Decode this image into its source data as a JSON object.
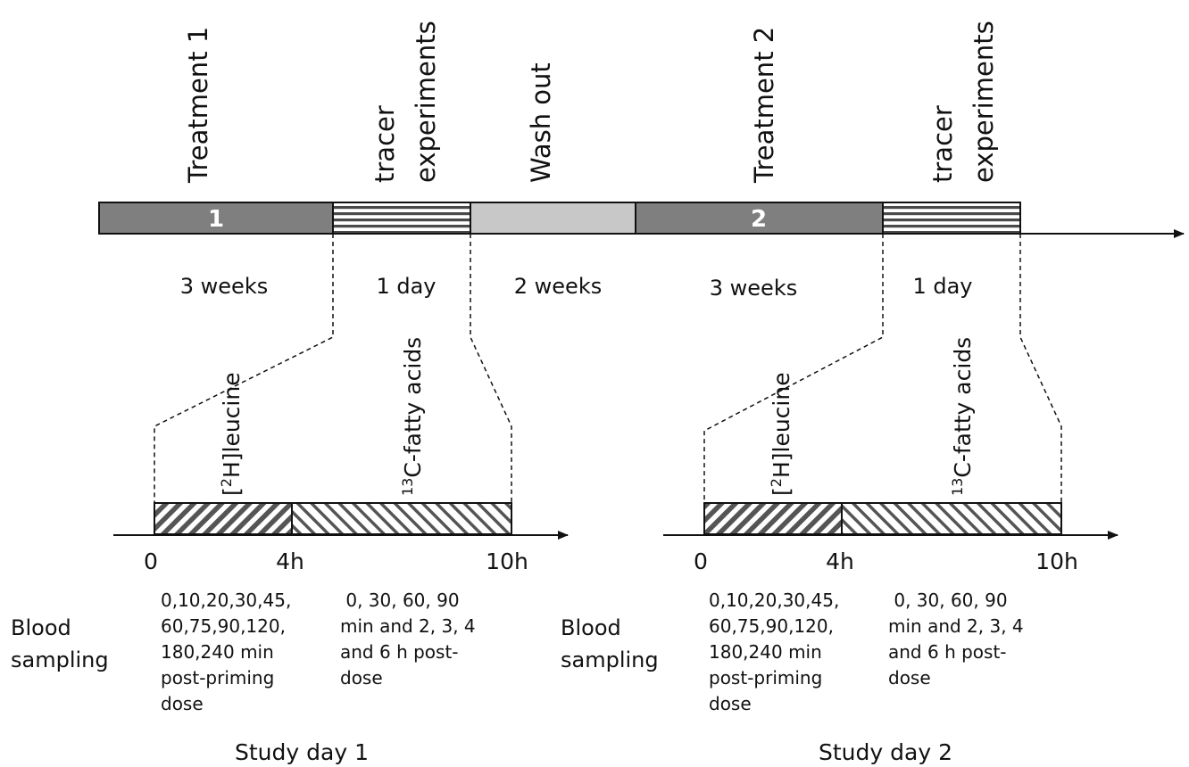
{
  "timeline": {
    "phases": [
      {
        "top_label": "Treatment  1",
        "bar_number": "1",
        "duration": "3 weeks",
        "style": "dark"
      },
      {
        "top_label_line1": "tracer",
        "top_label_line2": "experiments",
        "duration": "1 day",
        "style": "stripes"
      },
      {
        "top_label": "Wash out",
        "duration": "2 weeks",
        "style": "light"
      },
      {
        "top_label": "Treatment  2",
        "bar_number": "2",
        "duration": "3 weeks",
        "style": "dark"
      },
      {
        "top_label_line1": "tracer",
        "top_label_line2": "experiments",
        "duration": "1 day",
        "style": "stripes"
      }
    ]
  },
  "study_days": [
    {
      "tracer1": "[2H]leucine",
      "tracer2": "13C-fatty acids",
      "ticks": [
        "0",
        "4h",
        "10h"
      ],
      "blood_label_line1": "Blood",
      "blood_label_line2": "sampling",
      "sampling1": [
        "0,10,20,30,45,",
        "60,75,90,120,",
        "180,240 min",
        "post-priming",
        "dose"
      ],
      "sampling2": [
        " 0, 30, 60, 90",
        "min and 2, 3, 4",
        "and 6 h post-",
        "dose"
      ],
      "caption": "Study day 1"
    },
    {
      "tracer1": "[2H]leucine",
      "tracer2": "13C-fatty acids",
      "ticks": [
        "0",
        "4h",
        "10h"
      ],
      "blood_label_line1": "Blood",
      "blood_label_line2": "sampling",
      "sampling1": [
        "0,10,20,30,45,",
        "60,75,90,120,",
        "180,240 min",
        "post-priming",
        "dose"
      ],
      "sampling2": [
        " 0, 30, 60, 90",
        "min and 2, 3, 4",
        "and 6 h post-",
        "dose"
      ],
      "caption": "Study day 2"
    }
  ],
  "colors": {
    "dark_bar": "#7f7f7f",
    "light_bar": "#c8c8c8",
    "line": "#111111"
  }
}
